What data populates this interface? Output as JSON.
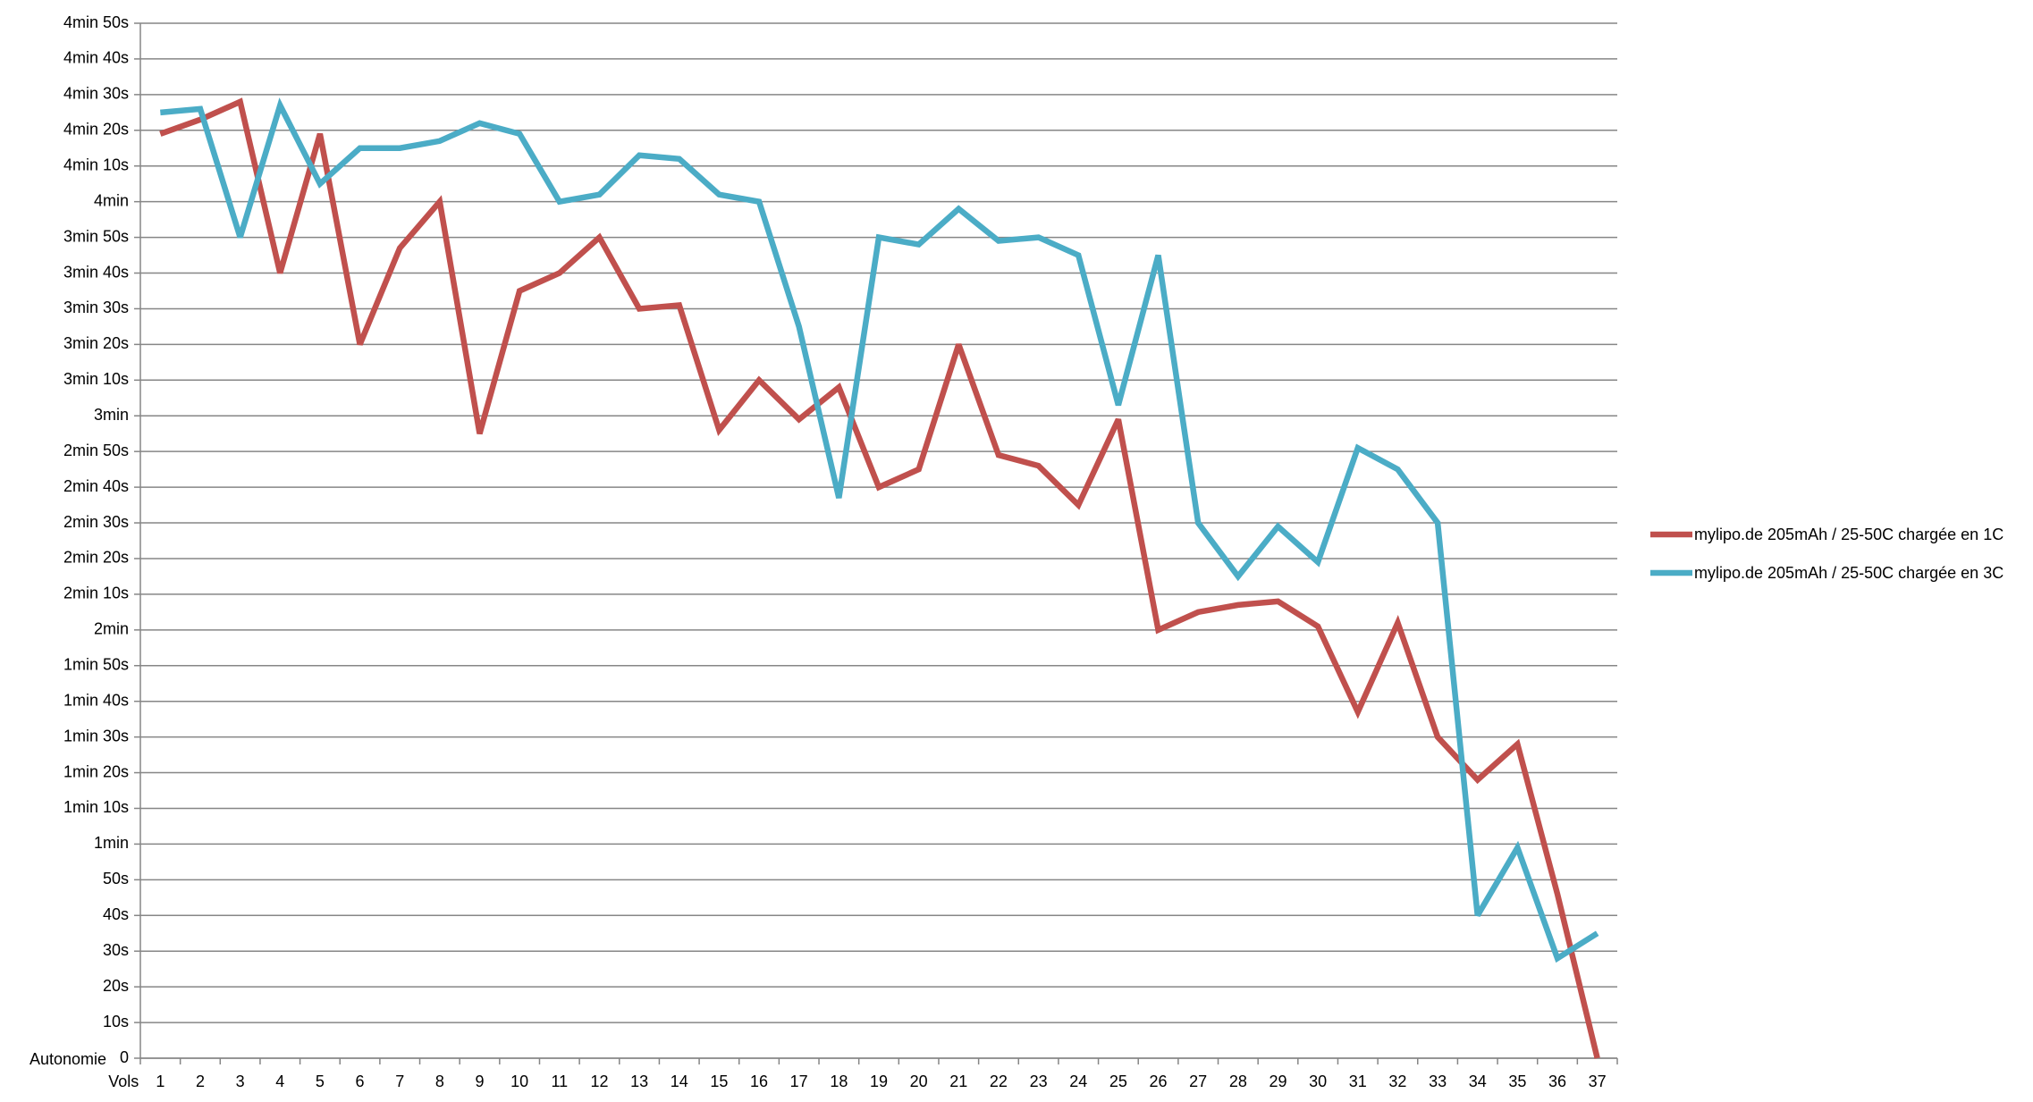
{
  "chart_data": {
    "type": "line",
    "x_label": "Vols",
    "y_label": "Autonomie",
    "categories": [
      "1",
      "2",
      "3",
      "4",
      "5",
      "6",
      "7",
      "8",
      "9",
      "10",
      "11",
      "12",
      "13",
      "14",
      "15",
      "16",
      "17",
      "18",
      "19",
      "20",
      "21",
      "22",
      "23",
      "24",
      "25",
      "26",
      "27",
      "28",
      "29",
      "30",
      "31",
      "32",
      "33",
      "34",
      "35",
      "36",
      "37"
    ],
    "series": [
      {
        "name": "mylipo.de 205mAh / 25-50C chargée en 1C",
        "color": "#c0504d",
        "values": [
          259,
          263,
          268,
          220,
          259,
          200,
          227,
          240,
          175,
          215,
          220,
          230,
          210,
          211,
          176,
          190,
          179,
          188,
          160,
          165,
          200,
          169,
          166,
          155,
          179,
          120,
          125,
          127,
          128,
          121,
          97,
          122,
          90,
          78,
          88,
          46,
          0
        ]
      },
      {
        "name": "mylipo.de 205mAh / 25-50C chargée en 3C",
        "color": "#4bacc6",
        "values": [
          265,
          266,
          230,
          267,
          245,
          255,
          255,
          257,
          262,
          259,
          240,
          242,
          253,
          252,
          242,
          240,
          205,
          157,
          230,
          228,
          238,
          229,
          230,
          225,
          183,
          225,
          150,
          135,
          149,
          139,
          171,
          165,
          150,
          40,
          59,
          28,
          35
        ]
      }
    ],
    "ylim": [
      0,
      290
    ],
    "yticks": [
      0,
      {
        "value": 10,
        "label": "10s"
      },
      {
        "value": 20,
        "label": "20s"
      },
      {
        "value": 30,
        "label": "30s"
      },
      {
        "value": 40,
        "label": "40s"
      },
      {
        "value": 50,
        "label": "50s"
      },
      {
        "value": 60,
        "label": "1min"
      },
      {
        "value": 70,
        "label": "1min 10s"
      },
      {
        "value": 80,
        "label": "1min 20s"
      },
      {
        "value": 90,
        "label": "1min 30s"
      },
      {
        "value": 100,
        "label": "1min 40s"
      },
      {
        "value": 110,
        "label": "1min 50s"
      },
      {
        "value": 120,
        "label": "2min"
      },
      {
        "value": 130,
        "label": "2min 10s"
      },
      {
        "value": 140,
        "label": "2min 20s"
      },
      {
        "value": 150,
        "label": "2min 30s"
      },
      {
        "value": 160,
        "label": "2min 40s"
      },
      {
        "value": 170,
        "label": "2min 50s"
      },
      {
        "value": 180,
        "label": "3min"
      },
      {
        "value": 190,
        "label": "3min 10s"
      },
      {
        "value": 200,
        "label": "3min 20s"
      },
      {
        "value": 210,
        "label": "3min 30s"
      },
      {
        "value": 220,
        "label": "3min 40s"
      },
      {
        "value": 230,
        "label": "3min 50s"
      },
      {
        "value": 240,
        "label": "4min"
      },
      {
        "value": 250,
        "label": "4min 10s"
      },
      {
        "value": 260,
        "label": "4min 20s"
      },
      {
        "value": 270,
        "label": "4min 30s"
      },
      {
        "value": 280,
        "label": "4min 40s"
      },
      {
        "value": 290,
        "label": "4min 50s"
      }
    ],
    "grid": true,
    "legend": "right"
  }
}
